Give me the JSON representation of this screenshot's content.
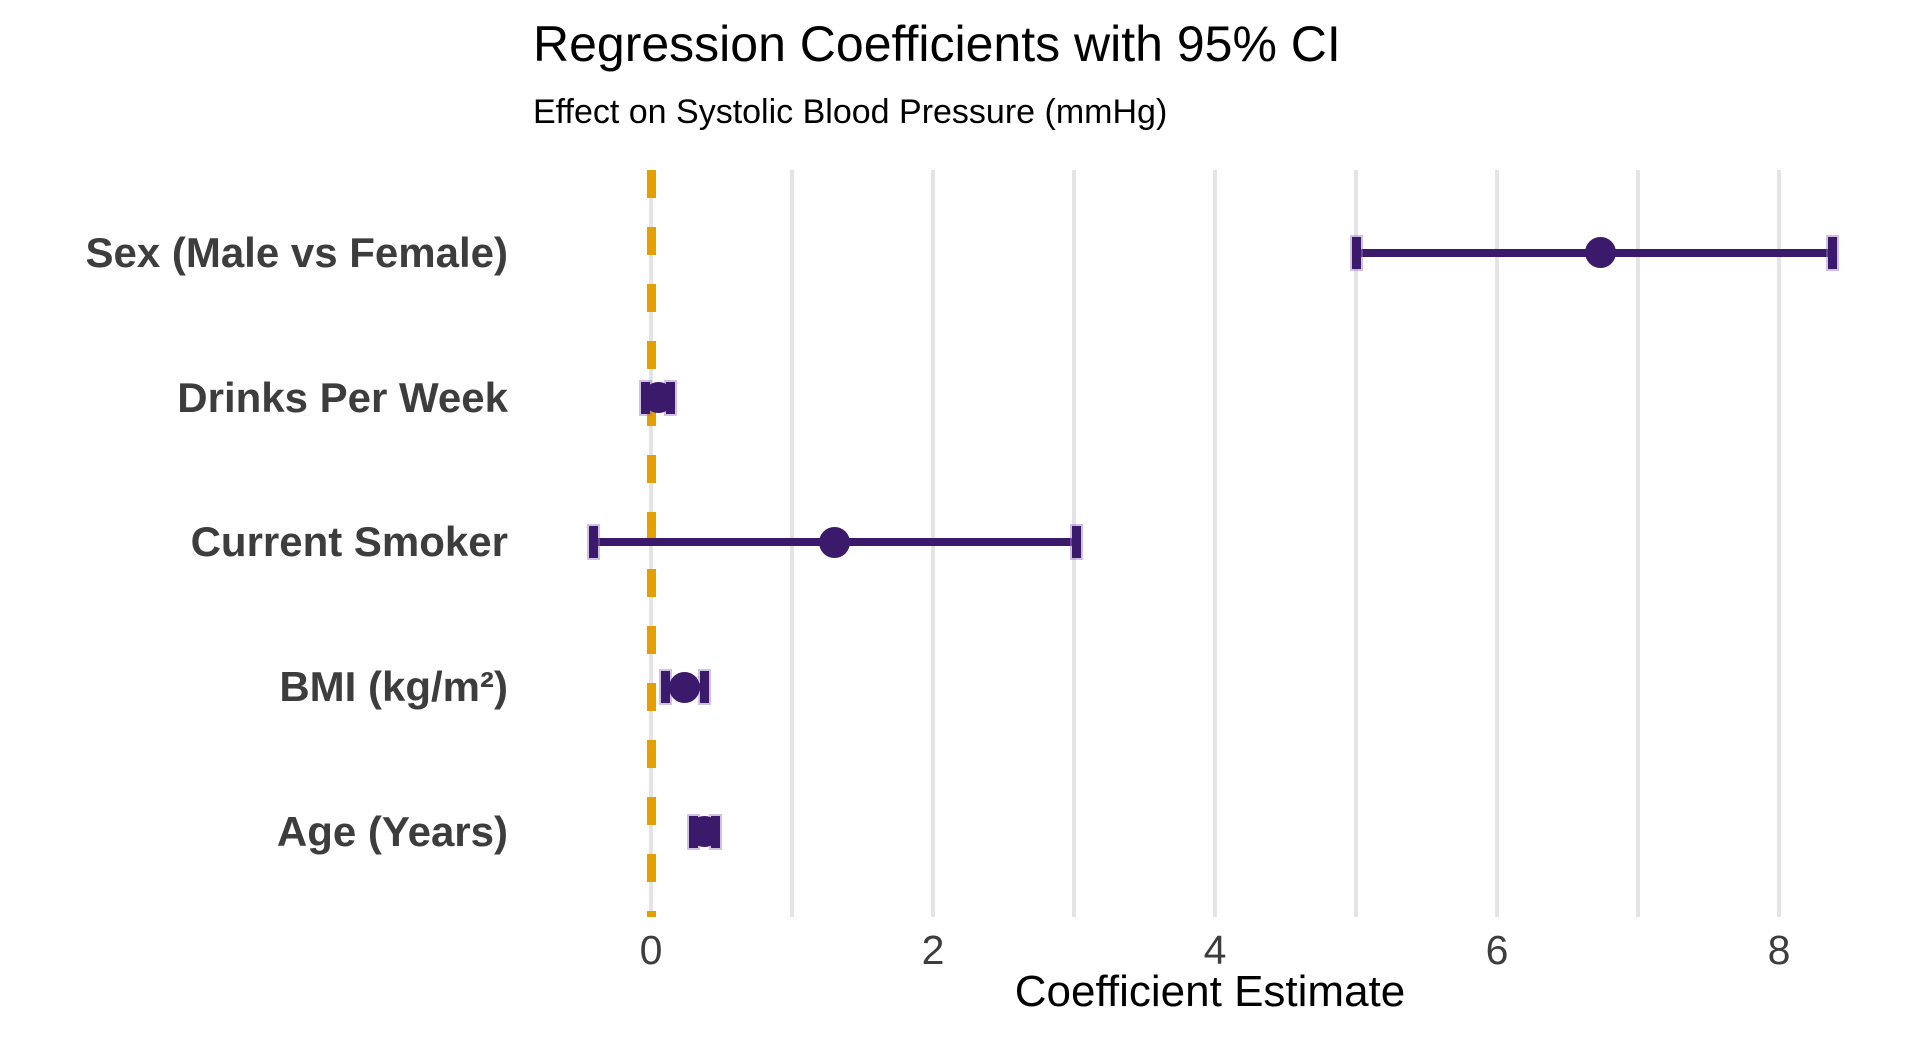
{
  "page": {
    "background": "#ffffff"
  },
  "chart_data": {
    "type": "scatter",
    "subtype": "forest-coefficient-plot",
    "title": "Regression Coefficients with 95% CI",
    "subtitle": "Effect on Systolic Blood Pressure (mmHg)",
    "xlabel": "Coefficient Estimate",
    "ylabel": "",
    "categories": [
      "Sex (Male vs Female)",
      "Drinks Per Week",
      "Current Smoker",
      "BMI (kg/m²)",
      "Age (Years)"
    ],
    "series": [
      {
        "name": "estimate",
        "values": [
          6.73,
          0.05,
          1.3,
          0.24,
          0.38
        ]
      },
      {
        "name": "ci_low",
        "values": [
          5.0,
          -0.04,
          -0.41,
          0.1,
          0.3
        ]
      },
      {
        "name": "ci_high",
        "values": [
          8.38,
          0.14,
          3.02,
          0.38,
          0.46
        ]
      }
    ],
    "x_ticks": [
      0,
      2,
      4,
      6,
      8
    ],
    "xlim": [
      -0.787,
      8.716
    ],
    "gridlines_at": [
      0,
      1,
      2,
      3,
      4,
      5,
      6,
      7,
      8
    ],
    "grid": "vertical-only",
    "legend": "none",
    "zero_reference_line": {
      "x": 0,
      "style": "dashed",
      "color": "#E69F00"
    },
    "colors": {
      "point": "#3b1a6b",
      "errorbar": "#3b1a6b",
      "grid": "#e4e4e4",
      "axis_tick_text": "#3d3d3d",
      "category_label_text": "#3d3d3d",
      "title_text": "#000000"
    }
  }
}
